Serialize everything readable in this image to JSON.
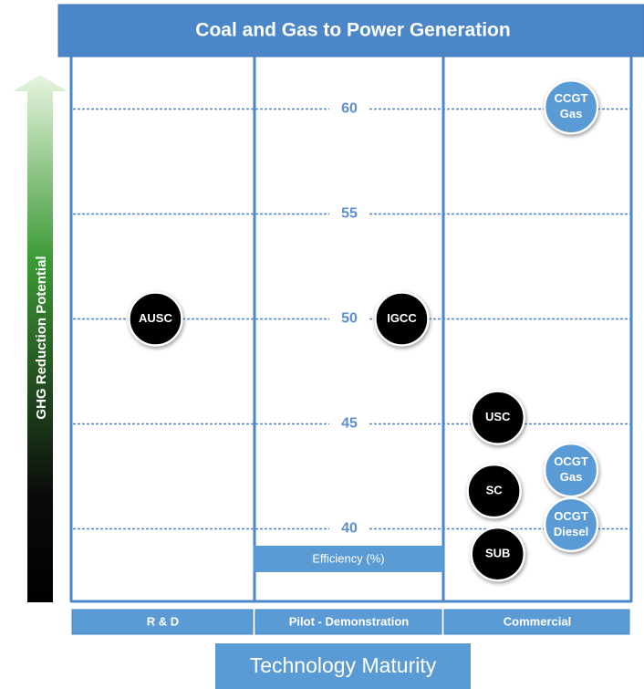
{
  "chart_data": {
    "type": "scatter",
    "title": "Coal and Gas to Power Generation",
    "y_label": "GHG Reduction Potential",
    "value_label": "Efficiency (%)",
    "x_label": "Technology Maturity",
    "categories": [
      "R & D",
      "Pilot - Demonstration",
      "Commercial"
    ],
    "ylim": [
      36.5,
      62.5
    ],
    "yticks": [
      40,
      45,
      50,
      55,
      60
    ],
    "grid": true,
    "points": [
      {
        "lines": [
          "AUSC"
        ],
        "category": 0,
        "value": 50,
        "color": "#000000"
      },
      {
        "lines": [
          "IGCC"
        ],
        "category": 1,
        "value": 50,
        "color": "#000000"
      },
      {
        "lines": [
          "USC"
        ],
        "category": 2,
        "value": 45.3,
        "color": "#000000"
      },
      {
        "lines": [
          "SC"
        ],
        "category": 2,
        "value": 41.8,
        "color": "#000000"
      },
      {
        "lines": [
          "SUB"
        ],
        "category": 2,
        "value": 38.8,
        "color": "#000000"
      },
      {
        "lines": [
          "CCGT",
          "Gas"
        ],
        "category": 2,
        "value": 60.1,
        "color": "#5b9bd5"
      },
      {
        "lines": [
          "OCGT",
          "Gas"
        ],
        "category": 2,
        "value": 42.8,
        "color": "#5b9bd5"
      },
      {
        "lines": [
          "OCGT",
          "Diesel"
        ],
        "category": 2,
        "value": 40.2,
        "color": "#5b9bd5"
      }
    ]
  }
}
